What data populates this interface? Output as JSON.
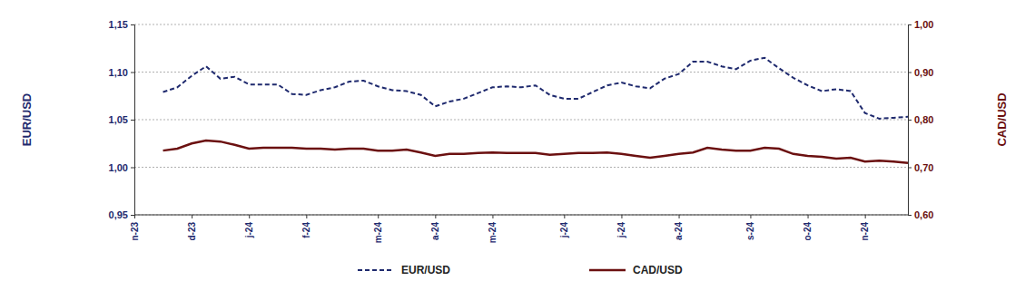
{
  "chart_data": {
    "type": "line",
    "y_label": "EUR/USD",
    "y2_label": "CAD/USD",
    "categories": [
      "n-23",
      null,
      null,
      null,
      "d-23",
      null,
      null,
      null,
      "j-24",
      null,
      null,
      null,
      "f-24",
      null,
      null,
      null,
      null,
      "m-24",
      null,
      null,
      null,
      "a-24",
      null,
      null,
      null,
      "m-24",
      null,
      null,
      null,
      null,
      "j-24",
      null,
      null,
      null,
      "j-24",
      null,
      null,
      null,
      "a-24",
      null,
      null,
      null,
      null,
      "s-24",
      null,
      null,
      null,
      "o-24",
      null,
      null,
      null,
      "n-24",
      null,
      null,
      null
    ],
    "series": [
      {
        "name": "EUR/USD",
        "color": "#1f2a6e",
        "line_style": "dashed",
        "axis": "y",
        "values": [
          null,
          null,
          1.079,
          1.084,
          1.096,
          1.106,
          1.093,
          1.095,
          1.087,
          1.087,
          1.087,
          1.077,
          1.076,
          1.081,
          1.084,
          1.09,
          1.091,
          1.085,
          1.081,
          1.08,
          1.076,
          1.064,
          1.069,
          1.072,
          1.078,
          1.084,
          1.085,
          1.084,
          1.086,
          1.076,
          1.072,
          1.072,
          1.079,
          1.086,
          1.089,
          1.085,
          1.083,
          1.093,
          1.098,
          1.111,
          1.111,
          1.106,
          1.103,
          1.112,
          1.115,
          1.104,
          1.094,
          1.086,
          1.08,
          1.082,
          1.08,
          1.057,
          1.051,
          1.052,
          1.053
        ]
      },
      {
        "name": "CAD/USD",
        "color": "#6b1010",
        "line_style": "solid",
        "axis": "y2",
        "values": [
          null,
          null,
          0.735,
          0.739,
          0.75,
          0.756,
          0.754,
          0.747,
          0.739,
          0.741,
          0.741,
          0.741,
          0.739,
          0.739,
          0.737,
          0.739,
          0.739,
          0.735,
          0.735,
          0.737,
          0.731,
          0.724,
          0.728,
          0.728,
          0.73,
          0.731,
          0.73,
          0.73,
          0.73,
          0.726,
          0.728,
          0.73,
          0.73,
          0.731,
          0.728,
          0.724,
          0.72,
          0.724,
          0.728,
          0.731,
          0.741,
          0.737,
          0.735,
          0.735,
          0.741,
          0.739,
          0.728,
          0.724,
          0.722,
          0.718,
          0.72,
          0.712,
          0.714,
          0.712,
          0.709
        ]
      }
    ],
    "ylim": [
      0.95,
      1.15
    ],
    "yticks": [
      {
        "value": 0.95,
        "label": "0,95"
      },
      {
        "value": 1.0,
        "label": "1,00"
      },
      {
        "value": 1.05,
        "label": "1,05"
      },
      {
        "value": 1.1,
        "label": "1,10"
      },
      {
        "value": 1.15,
        "label": "1,15"
      }
    ],
    "y2lim": [
      0.6,
      1.0
    ],
    "y2ticks": [
      {
        "value": 0.6,
        "label": "0,60"
      },
      {
        "value": 0.7,
        "label": "0,70"
      },
      {
        "value": 0.8,
        "label": "0,80"
      },
      {
        "value": 0.9,
        "label": "0,90"
      },
      {
        "value": 1.0,
        "label": "1,00"
      }
    ],
    "grid": true,
    "legend": "bottom"
  }
}
